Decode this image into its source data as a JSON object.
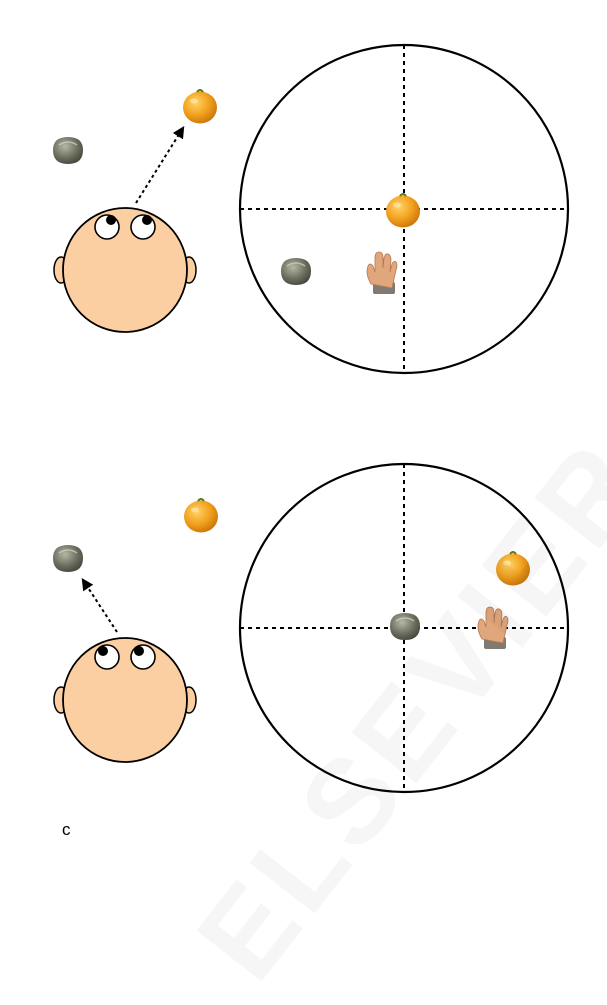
{
  "panel_label": "c",
  "watermark_text": "ELSEVIER AUTHOR",
  "colors": {
    "skin": "#fbcfa2",
    "stroke": "#000000",
    "orange_fruit": "#f2a21e",
    "orange_highlight": "#ffd36a",
    "orange_shadow": "#c97409",
    "gray_object": "#6d7060",
    "gray_highlight": "#b4b8a5",
    "hand_skin": "#e0a77c",
    "hand_sleeve": "#807a72"
  },
  "icons": [
    "head-icon",
    "orange-fruit-icon",
    "gray-object-icon",
    "hand-icon"
  ],
  "scenes": [
    {
      "id": "top",
      "gaze_target": "orange",
      "hand_near": "orange"
    },
    {
      "id": "bottom",
      "gaze_target": "gray",
      "hand_near": "orange"
    }
  ]
}
